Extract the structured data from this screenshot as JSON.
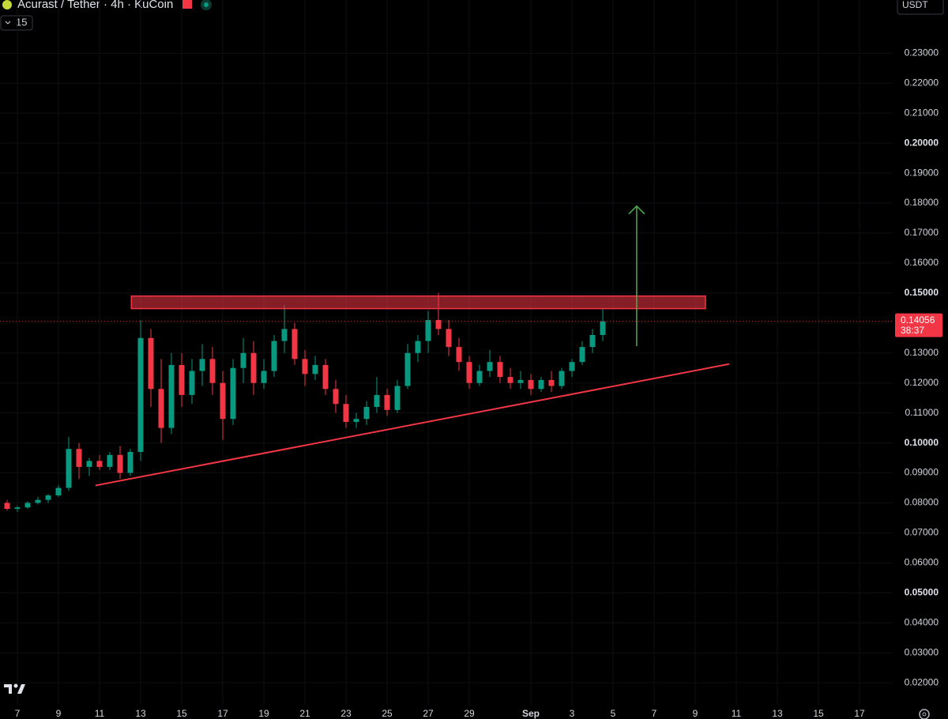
{
  "chart_data": {
    "type": "candlestick",
    "title": "Acurast / Tether · 4h · KuCoin",
    "indicator_count": "15",
    "currency": "USDT",
    "countdown": "38:37",
    "last_price": 0.14056,
    "up_color": "#089981",
    "down_color": "#f23645",
    "categories": [
      null,
      "7",
      null,
      null,
      null,
      "9",
      null,
      null,
      null,
      "11",
      null,
      null,
      null,
      "13",
      null,
      null,
      null,
      "15",
      null,
      null,
      null,
      "17",
      null,
      null,
      null,
      "19",
      null,
      null,
      null,
      "21",
      null,
      null,
      null,
      "23",
      null,
      null,
      null,
      "25",
      null,
      null,
      null,
      "27",
      null,
      null,
      null,
      "29",
      null,
      null,
      null,
      null,
      null,
      "Sep",
      null,
      null,
      null,
      "3",
      null,
      null,
      null,
      "5",
      null,
      null,
      null,
      "7",
      null,
      null,
      null,
      "9",
      null,
      null,
      null,
      "11",
      null,
      null,
      null,
      "13",
      null,
      null,
      null,
      "15",
      null,
      null,
      null,
      "17",
      null,
      null,
      null
    ],
    "open": [
      0.08,
      0.078,
      0.0785,
      0.08,
      0.081,
      0.0825,
      0.085,
      0.098,
      0.092,
      0.094,
      0.092,
      0.096,
      0.09,
      0.097,
      0.135,
      0.118,
      0.105,
      0.126,
      0.116,
      0.124,
      0.128,
      0.12,
      0.108,
      0.125,
      0.13,
      0.12,
      0.124,
      0.134,
      0.138,
      0.128,
      0.123,
      0.126,
      0.118,
      0.113,
      0.107,
      0.108,
      0.112,
      0.116,
      0.111,
      0.119,
      0.13,
      0.134,
      0.141,
      0.138,
      0.132,
      0.127,
      0.12,
      0.124,
      0.127,
      0.122,
      0.12,
      0.121,
      0.118,
      0.121,
      0.119,
      0.124,
      0.127,
      0.132,
      0.136,
      null,
      null,
      null,
      null,
      null,
      null,
      null,
      null,
      null,
      null,
      null,
      null,
      null,
      null,
      null,
      null,
      null,
      null,
      null,
      null,
      null,
      null,
      null,
      null,
      null,
      null,
      null,
      null
    ],
    "high": [
      0.081,
      0.079,
      0.0805,
      0.082,
      0.083,
      0.086,
      0.102,
      0.1,
      0.095,
      0.096,
      0.097,
      0.099,
      0.098,
      0.141,
      0.138,
      0.128,
      0.13,
      0.13,
      0.128,
      0.133,
      0.132,
      0.124,
      0.128,
      0.135,
      0.134,
      0.128,
      0.136,
      0.146,
      0.14,
      0.131,
      0.129,
      0.128,
      0.121,
      0.116,
      0.11,
      0.114,
      0.122,
      0.118,
      0.121,
      0.133,
      0.136,
      0.144,
      0.15,
      0.141,
      0.135,
      0.129,
      0.126,
      0.131,
      0.129,
      0.125,
      0.124,
      0.123,
      0.122,
      0.124,
      0.125,
      0.128,
      0.134,
      0.138,
      0.145,
      null,
      null,
      null,
      null,
      null,
      null,
      null,
      null,
      null,
      null,
      null,
      null,
      null,
      null,
      null,
      null,
      null,
      null,
      null,
      null,
      null,
      null,
      null,
      null,
      null,
      null,
      null,
      null
    ],
    "low": [
      0.0775,
      0.077,
      0.078,
      0.0795,
      0.08,
      0.082,
      0.084,
      0.088,
      0.089,
      0.091,
      0.091,
      0.088,
      0.089,
      0.094,
      0.112,
      0.1,
      0.103,
      0.112,
      0.113,
      0.119,
      0.116,
      0.101,
      0.106,
      0.12,
      0.116,
      0.118,
      0.122,
      0.13,
      0.126,
      0.119,
      0.121,
      0.116,
      0.11,
      0.105,
      0.105,
      0.106,
      0.11,
      0.109,
      0.11,
      0.118,
      0.127,
      0.13,
      0.136,
      0.129,
      0.124,
      0.118,
      0.119,
      0.122,
      0.12,
      0.118,
      0.118,
      0.116,
      0.117,
      0.117,
      0.118,
      0.122,
      0.126,
      0.13,
      0.134,
      null,
      null,
      null,
      null,
      null,
      null,
      null,
      null,
      null,
      null,
      null,
      null,
      null,
      null,
      null,
      null,
      null,
      null,
      null,
      null,
      null,
      null,
      null,
      null,
      null,
      null,
      null,
      null
    ],
    "close": [
      0.078,
      0.0785,
      0.08,
      0.081,
      0.0825,
      0.085,
      0.098,
      0.092,
      0.094,
      0.092,
      0.096,
      0.09,
      0.097,
      0.135,
      0.118,
      0.105,
      0.126,
      0.116,
      0.124,
      0.128,
      0.12,
      0.108,
      0.125,
      0.13,
      0.12,
      0.124,
      0.134,
      0.138,
      0.128,
      0.123,
      0.126,
      0.118,
      0.113,
      0.107,
      0.108,
      0.112,
      0.116,
      0.111,
      0.119,
      0.13,
      0.134,
      0.141,
      0.138,
      0.132,
      0.127,
      0.12,
      0.124,
      0.127,
      0.122,
      0.12,
      0.121,
      0.118,
      0.121,
      0.119,
      0.124,
      0.127,
      0.132,
      0.136,
      0.14056,
      null,
      null,
      null,
      null,
      null,
      null,
      null,
      null,
      null,
      null,
      null,
      null,
      null,
      null,
      null,
      null,
      null,
      null,
      null,
      null,
      null,
      null,
      null,
      null,
      null,
      null,
      null,
      null
    ],
    "ylim": [
      0.0145,
      0.2372
    ],
    "yticks": [
      {
        "value": 0.02,
        "label": "0.02000"
      },
      {
        "value": 0.03,
        "label": "0.03000"
      },
      {
        "value": 0.04,
        "label": "0.04000"
      },
      {
        "value": 0.05,
        "label": "0.05000"
      },
      {
        "value": 0.06,
        "label": "0.06000"
      },
      {
        "value": 0.07,
        "label": "0.07000"
      },
      {
        "value": 0.08,
        "label": "0.08000"
      },
      {
        "value": 0.09,
        "label": "0.09000"
      },
      {
        "value": 0.1,
        "label": "0.10000"
      },
      {
        "value": 0.11,
        "label": "0.11000"
      },
      {
        "value": 0.12,
        "label": "0.12000"
      },
      {
        "value": 0.13,
        "label": "0.13000"
      },
      {
        "value": 0.14,
        "label": "0.14000"
      },
      {
        "value": 0.15,
        "label": "0.15000"
      },
      {
        "value": 0.16,
        "label": "0.16000"
      },
      {
        "value": 0.17,
        "label": "0.17000"
      },
      {
        "value": 0.18,
        "label": "0.18000"
      },
      {
        "value": 0.19,
        "label": "0.19000"
      },
      {
        "value": 0.2,
        "label": "0.20000"
      },
      {
        "value": 0.21,
        "label": "0.21000"
      },
      {
        "value": 0.22,
        "label": "0.22000"
      },
      {
        "value": 0.23,
        "label": "0.23000"
      }
    ],
    "grid": true,
    "drawings": {
      "resistance_zone": {
        "x": [
          12.1,
          68.0
        ],
        "y": [
          0.1448,
          0.149
        ],
        "color": "#f23645"
      },
      "trendline": {
        "x": [
          8.6,
          70.3
        ],
        "y": [
          0.0858,
          0.1263
        ],
        "color": "#f23645"
      },
      "arrow": {
        "x": 61.3,
        "y": [
          0.1323,
          0.179
        ],
        "color": "#4caf50"
      }
    }
  }
}
